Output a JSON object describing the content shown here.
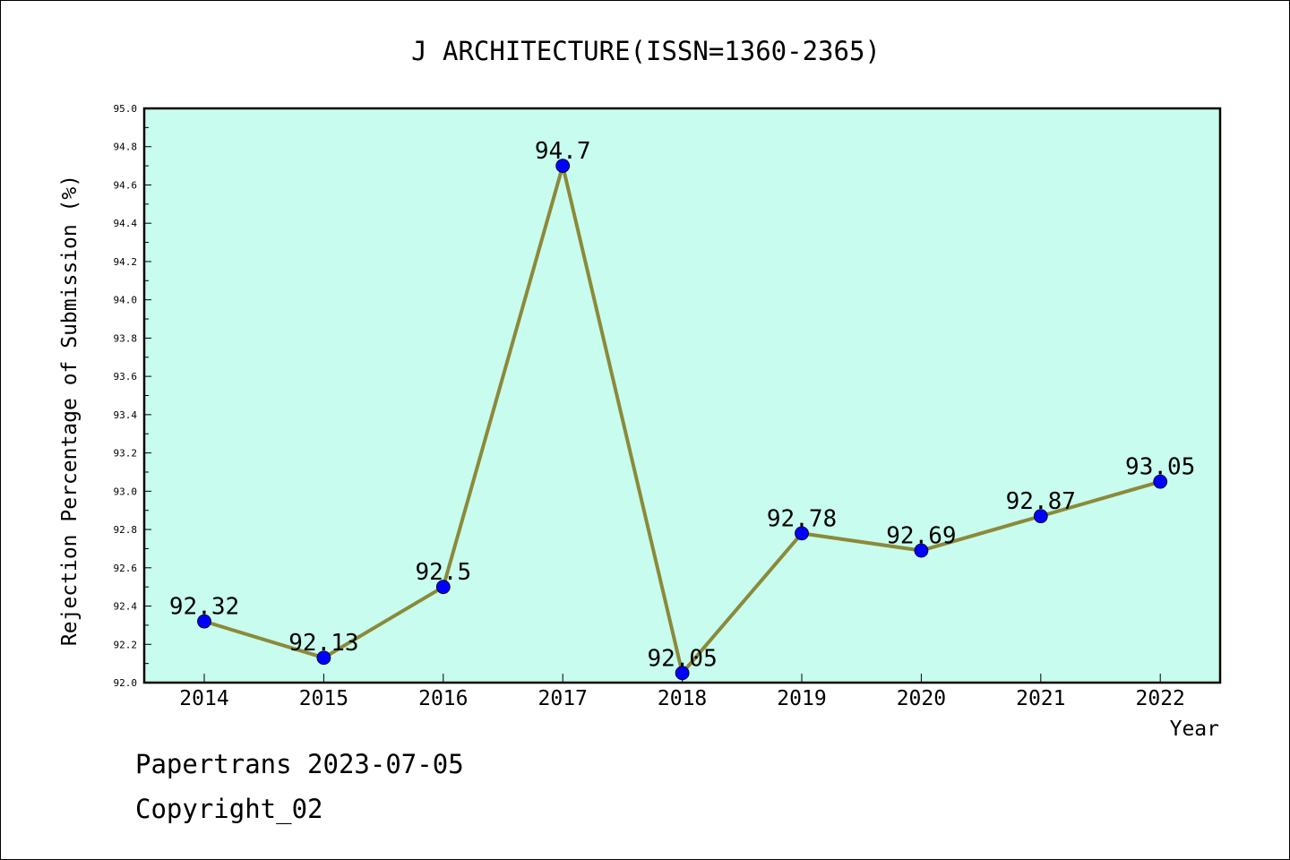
{
  "footer": {
    "line1": "Papertrans 2023-07-05",
    "line2": "Copyright_02"
  },
  "chart_data": {
    "type": "line",
    "title": "J ARCHITECTURE(ISSN=1360-2365)",
    "xlabel": "Year",
    "ylabel": "Rejection Percentage of Submission (%)",
    "categories": [
      "2014",
      "2015",
      "2016",
      "2017",
      "2018",
      "2019",
      "2020",
      "2021",
      "2022"
    ],
    "series": [
      {
        "values": [
          92.32,
          92.13,
          92.5,
          94.7,
          92.05,
          92.78,
          92.69,
          92.87,
          93.05
        ],
        "labels": [
          "92.32",
          "92.13",
          "92.5",
          "94.7",
          "92.05",
          "92.78",
          "92.69",
          "92.87",
          "93.05"
        ]
      }
    ],
    "ylim": [
      92.0,
      95.0
    ],
    "yticks": [
      "92.0",
      "92.2",
      "92.4",
      "92.6",
      "92.8",
      "93.0",
      "93.2",
      "93.4",
      "93.6",
      "93.8",
      "94.0",
      "94.2",
      "94.4",
      "94.6",
      "94.8",
      "95.0"
    ],
    "grid": false,
    "colors": {
      "plot_background": "#c8fcee",
      "line": "#8b8a3a",
      "marker": "#0000ff"
    }
  }
}
